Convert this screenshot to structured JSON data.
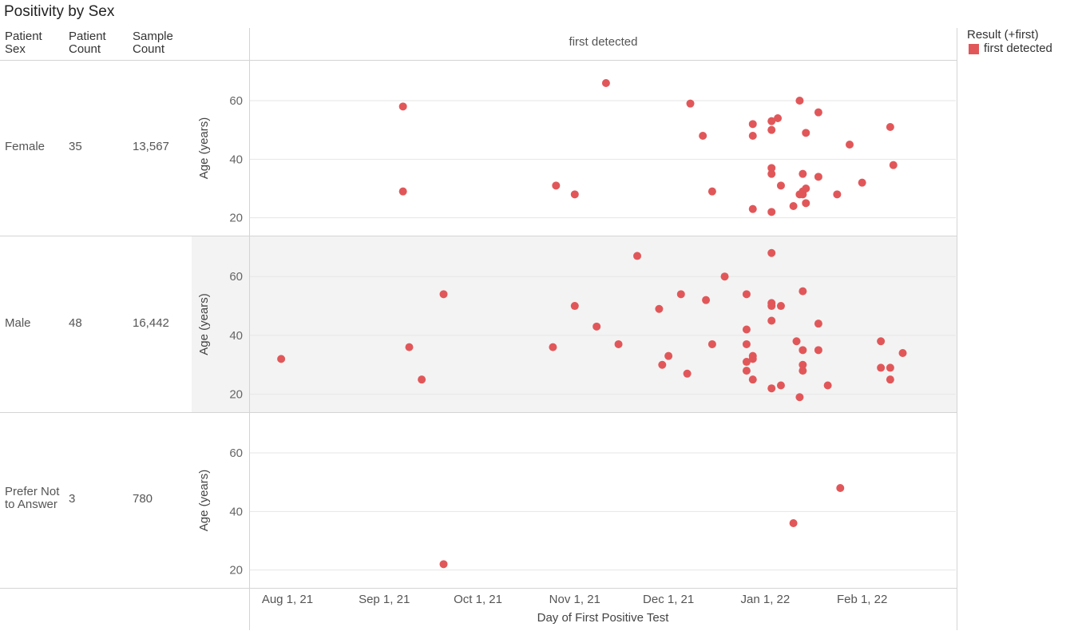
{
  "title": "Positivity by Sex",
  "table": {
    "headers": [
      "Patient\nSex",
      "Patient\nCount",
      "Sample\nCount"
    ],
    "rows": [
      {
        "sex": "Female",
        "patient_count": "35",
        "sample_count": "13,567"
      },
      {
        "sex": "Male",
        "patient_count": "48",
        "sample_count": "16,442"
      },
      {
        "sex": "Prefer Not\nto Answer",
        "patient_count": "3",
        "sample_count": "780"
      }
    ]
  },
  "column_header": "first detected",
  "legend": {
    "title": "Result (+first)",
    "items": [
      {
        "label": "first detected",
        "color": "#e15759"
      }
    ]
  },
  "colors": {
    "point": "#e15759",
    "band": "#f3f3f3",
    "grid": "#e6e6e6",
    "border": "#d4d4d4"
  },
  "chart_data": {
    "type": "scatter",
    "title": "Positivity by Sex",
    "xlabel": "Day of First Positive Test",
    "ylabel": "Age (years)",
    "x_ticks": [
      "Aug 1, 21",
      "Sep 1, 21",
      "Oct 1, 21",
      "Nov 1, 21",
      "Dec 1, 21",
      "Jan 1, 22",
      "Feb 1, 22"
    ],
    "x_tick_dates": [
      "2021-08-01",
      "2021-09-01",
      "2021-10-01",
      "2021-11-01",
      "2021-12-01",
      "2022-01-01",
      "2022-02-01"
    ],
    "xlim": [
      "2021-07-20",
      "2022-03-03"
    ],
    "y_ticks": [
      20,
      40,
      60
    ],
    "ylim": [
      15,
      72
    ],
    "grid": true,
    "legend_position": "top-right",
    "panels": [
      {
        "name": "Female",
        "points": [
          {
            "x": "2021-09-07",
            "y": 58
          },
          {
            "x": "2021-09-07",
            "y": 29
          },
          {
            "x": "2021-10-26",
            "y": 31
          },
          {
            "x": "2021-11-01",
            "y": 28
          },
          {
            "x": "2021-11-11",
            "y": 66
          },
          {
            "x": "2021-12-08",
            "y": 59
          },
          {
            "x": "2021-12-12",
            "y": 48
          },
          {
            "x": "2021-12-15",
            "y": 29
          },
          {
            "x": "2021-12-28",
            "y": 52
          },
          {
            "x": "2021-12-28",
            "y": 48
          },
          {
            "x": "2021-12-28",
            "y": 23
          },
          {
            "x": "2022-01-03",
            "y": 53
          },
          {
            "x": "2022-01-03",
            "y": 50
          },
          {
            "x": "2022-01-03",
            "y": 37
          },
          {
            "x": "2022-01-03",
            "y": 35
          },
          {
            "x": "2022-01-03",
            "y": 22
          },
          {
            "x": "2022-01-05",
            "y": 54
          },
          {
            "x": "2022-01-06",
            "y": 31
          },
          {
            "x": "2022-01-10",
            "y": 24
          },
          {
            "x": "2022-01-12",
            "y": 60
          },
          {
            "x": "2022-01-12",
            "y": 28
          },
          {
            "x": "2022-01-13",
            "y": 35
          },
          {
            "x": "2022-01-13",
            "y": 29
          },
          {
            "x": "2022-01-13",
            "y": 28
          },
          {
            "x": "2022-01-14",
            "y": 49
          },
          {
            "x": "2022-01-14",
            "y": 30
          },
          {
            "x": "2022-01-14",
            "y": 25
          },
          {
            "x": "2022-01-18",
            "y": 56
          },
          {
            "x": "2022-01-18",
            "y": 34
          },
          {
            "x": "2022-01-24",
            "y": 28
          },
          {
            "x": "2022-01-28",
            "y": 45
          },
          {
            "x": "2022-02-01",
            "y": 32
          },
          {
            "x": "2022-02-10",
            "y": 51
          },
          {
            "x": "2022-02-11",
            "y": 38
          }
        ]
      },
      {
        "name": "Male",
        "points": [
          {
            "x": "2021-07-30",
            "y": 32
          },
          {
            "x": "2021-09-09",
            "y": 36
          },
          {
            "x": "2021-09-13",
            "y": 25
          },
          {
            "x": "2021-09-20",
            "y": 54
          },
          {
            "x": "2021-10-25",
            "y": 36
          },
          {
            "x": "2021-11-01",
            "y": 50
          },
          {
            "x": "2021-11-08",
            "y": 43
          },
          {
            "x": "2021-11-15",
            "y": 37
          },
          {
            "x": "2021-11-21",
            "y": 67
          },
          {
            "x": "2021-11-28",
            "y": 49
          },
          {
            "x": "2021-11-29",
            "y": 30
          },
          {
            "x": "2021-12-01",
            "y": 33
          },
          {
            "x": "2021-12-05",
            "y": 54
          },
          {
            "x": "2021-12-07",
            "y": 27
          },
          {
            "x": "2021-12-13",
            "y": 52
          },
          {
            "x": "2021-12-15",
            "y": 37
          },
          {
            "x": "2021-12-19",
            "y": 60
          },
          {
            "x": "2021-12-26",
            "y": 54
          },
          {
            "x": "2021-12-26",
            "y": 42
          },
          {
            "x": "2021-12-26",
            "y": 37
          },
          {
            "x": "2021-12-26",
            "y": 31
          },
          {
            "x": "2021-12-26",
            "y": 28
          },
          {
            "x": "2021-12-28",
            "y": 33
          },
          {
            "x": "2021-12-28",
            "y": 32
          },
          {
            "x": "2021-12-28",
            "y": 25
          },
          {
            "x": "2022-01-03",
            "y": 68
          },
          {
            "x": "2022-01-03",
            "y": 51
          },
          {
            "x": "2022-01-03",
            "y": 50
          },
          {
            "x": "2022-01-03",
            "y": 45
          },
          {
            "x": "2022-01-03",
            "y": 22
          },
          {
            "x": "2022-01-06",
            "y": 50
          },
          {
            "x": "2022-01-06",
            "y": 23
          },
          {
            "x": "2022-01-11",
            "y": 38
          },
          {
            "x": "2022-01-12",
            "y": 19
          },
          {
            "x": "2022-01-13",
            "y": 55
          },
          {
            "x": "2022-01-13",
            "y": 35
          },
          {
            "x": "2022-01-13",
            "y": 30
          },
          {
            "x": "2022-01-13",
            "y": 28
          },
          {
            "x": "2022-01-18",
            "y": 44
          },
          {
            "x": "2022-01-18",
            "y": 35
          },
          {
            "x": "2022-01-21",
            "y": 23
          },
          {
            "x": "2022-02-07",
            "y": 38
          },
          {
            "x": "2022-02-07",
            "y": 29
          },
          {
            "x": "2022-02-10",
            "y": 29
          },
          {
            "x": "2022-02-10",
            "y": 25
          },
          {
            "x": "2022-02-14",
            "y": 34
          }
        ]
      },
      {
        "name": "Prefer Not to Answer",
        "points": [
          {
            "x": "2021-09-20",
            "y": 22
          },
          {
            "x": "2022-01-10",
            "y": 36
          },
          {
            "x": "2022-01-25",
            "y": 48
          }
        ]
      }
    ]
  }
}
